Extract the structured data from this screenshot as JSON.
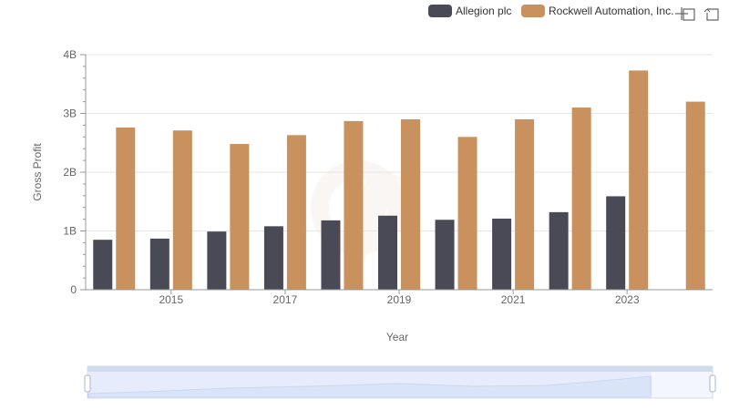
{
  "chart_data": {
    "type": "bar",
    "xlabel": "Year",
    "ylabel": "Gross Profit",
    "x": [
      2014,
      2015,
      2016,
      2017,
      2018,
      2019,
      2020,
      2021,
      2022,
      2023,
      2024
    ],
    "x_ticks": [
      "2015",
      "2017",
      "2019",
      "2021",
      "2023"
    ],
    "y_ticks": [
      {
        "value": 0,
        "label": "0"
      },
      {
        "value": 1000000000,
        "label": "1B"
      },
      {
        "value": 2000000000,
        "label": "2B"
      },
      {
        "value": 3000000000,
        "label": "3B"
      },
      {
        "value": 4000000000,
        "label": "4B"
      }
    ],
    "ylim": [
      0,
      4000000000
    ],
    "grid": true,
    "legend_position": "top-right",
    "series": [
      {
        "name": "Allegion plc",
        "color": "#4a4a57",
        "values": [
          850000000,
          870000000,
          990000000,
          1080000000,
          1180000000,
          1260000000,
          1190000000,
          1210000000,
          1320000000,
          1590000000,
          null
        ]
      },
      {
        "name": "Rockwell Automation, Inc.",
        "color": "#c8915e",
        "values": [
          2760000000,
          2710000000,
          2480000000,
          2630000000,
          2870000000,
          2900000000,
          2600000000,
          2900000000,
          3100000000,
          3730000000,
          3200000000
        ]
      }
    ]
  },
  "toolbar": {
    "zoom_icon": "zoom-cross-icon",
    "reset_icon": "reset-zoom-icon"
  }
}
